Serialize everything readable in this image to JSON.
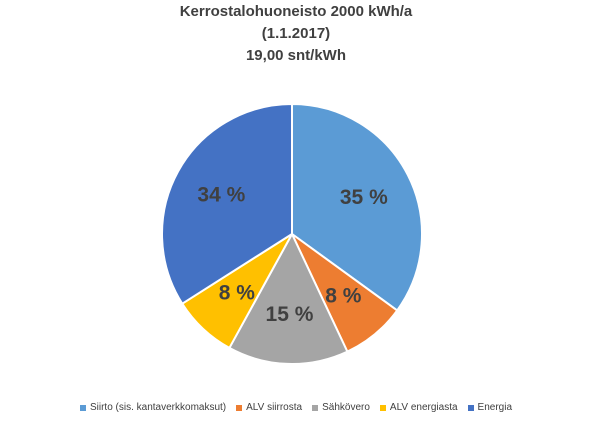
{
  "chart_data": {
    "type": "pie",
    "title_lines": [
      "Kerrostalohuoneisto 2000 kWh/a",
      "(1.1.2017)",
      "19,00 snt/kWh"
    ],
    "slices": [
      {
        "name": "Siirto (sis. kantaverkkomaksut)",
        "value": 35,
        "label": "35 %",
        "color": "#5B9BD5"
      },
      {
        "name": "ALV siirrosta",
        "value": 8,
        "label": "8 %",
        "color": "#ED7D31"
      },
      {
        "name": "Sähkövero",
        "value": 15,
        "label": "15 %",
        "color": "#A5A5A5"
      },
      {
        "name": "ALV energiasta",
        "value": 8,
        "label": "8 %",
        "color": "#FFC000"
      },
      {
        "name": "Energia",
        "value": 34,
        "label": "34 %",
        "color": "#4472C4"
      }
    ],
    "legend_position": "bottom"
  }
}
